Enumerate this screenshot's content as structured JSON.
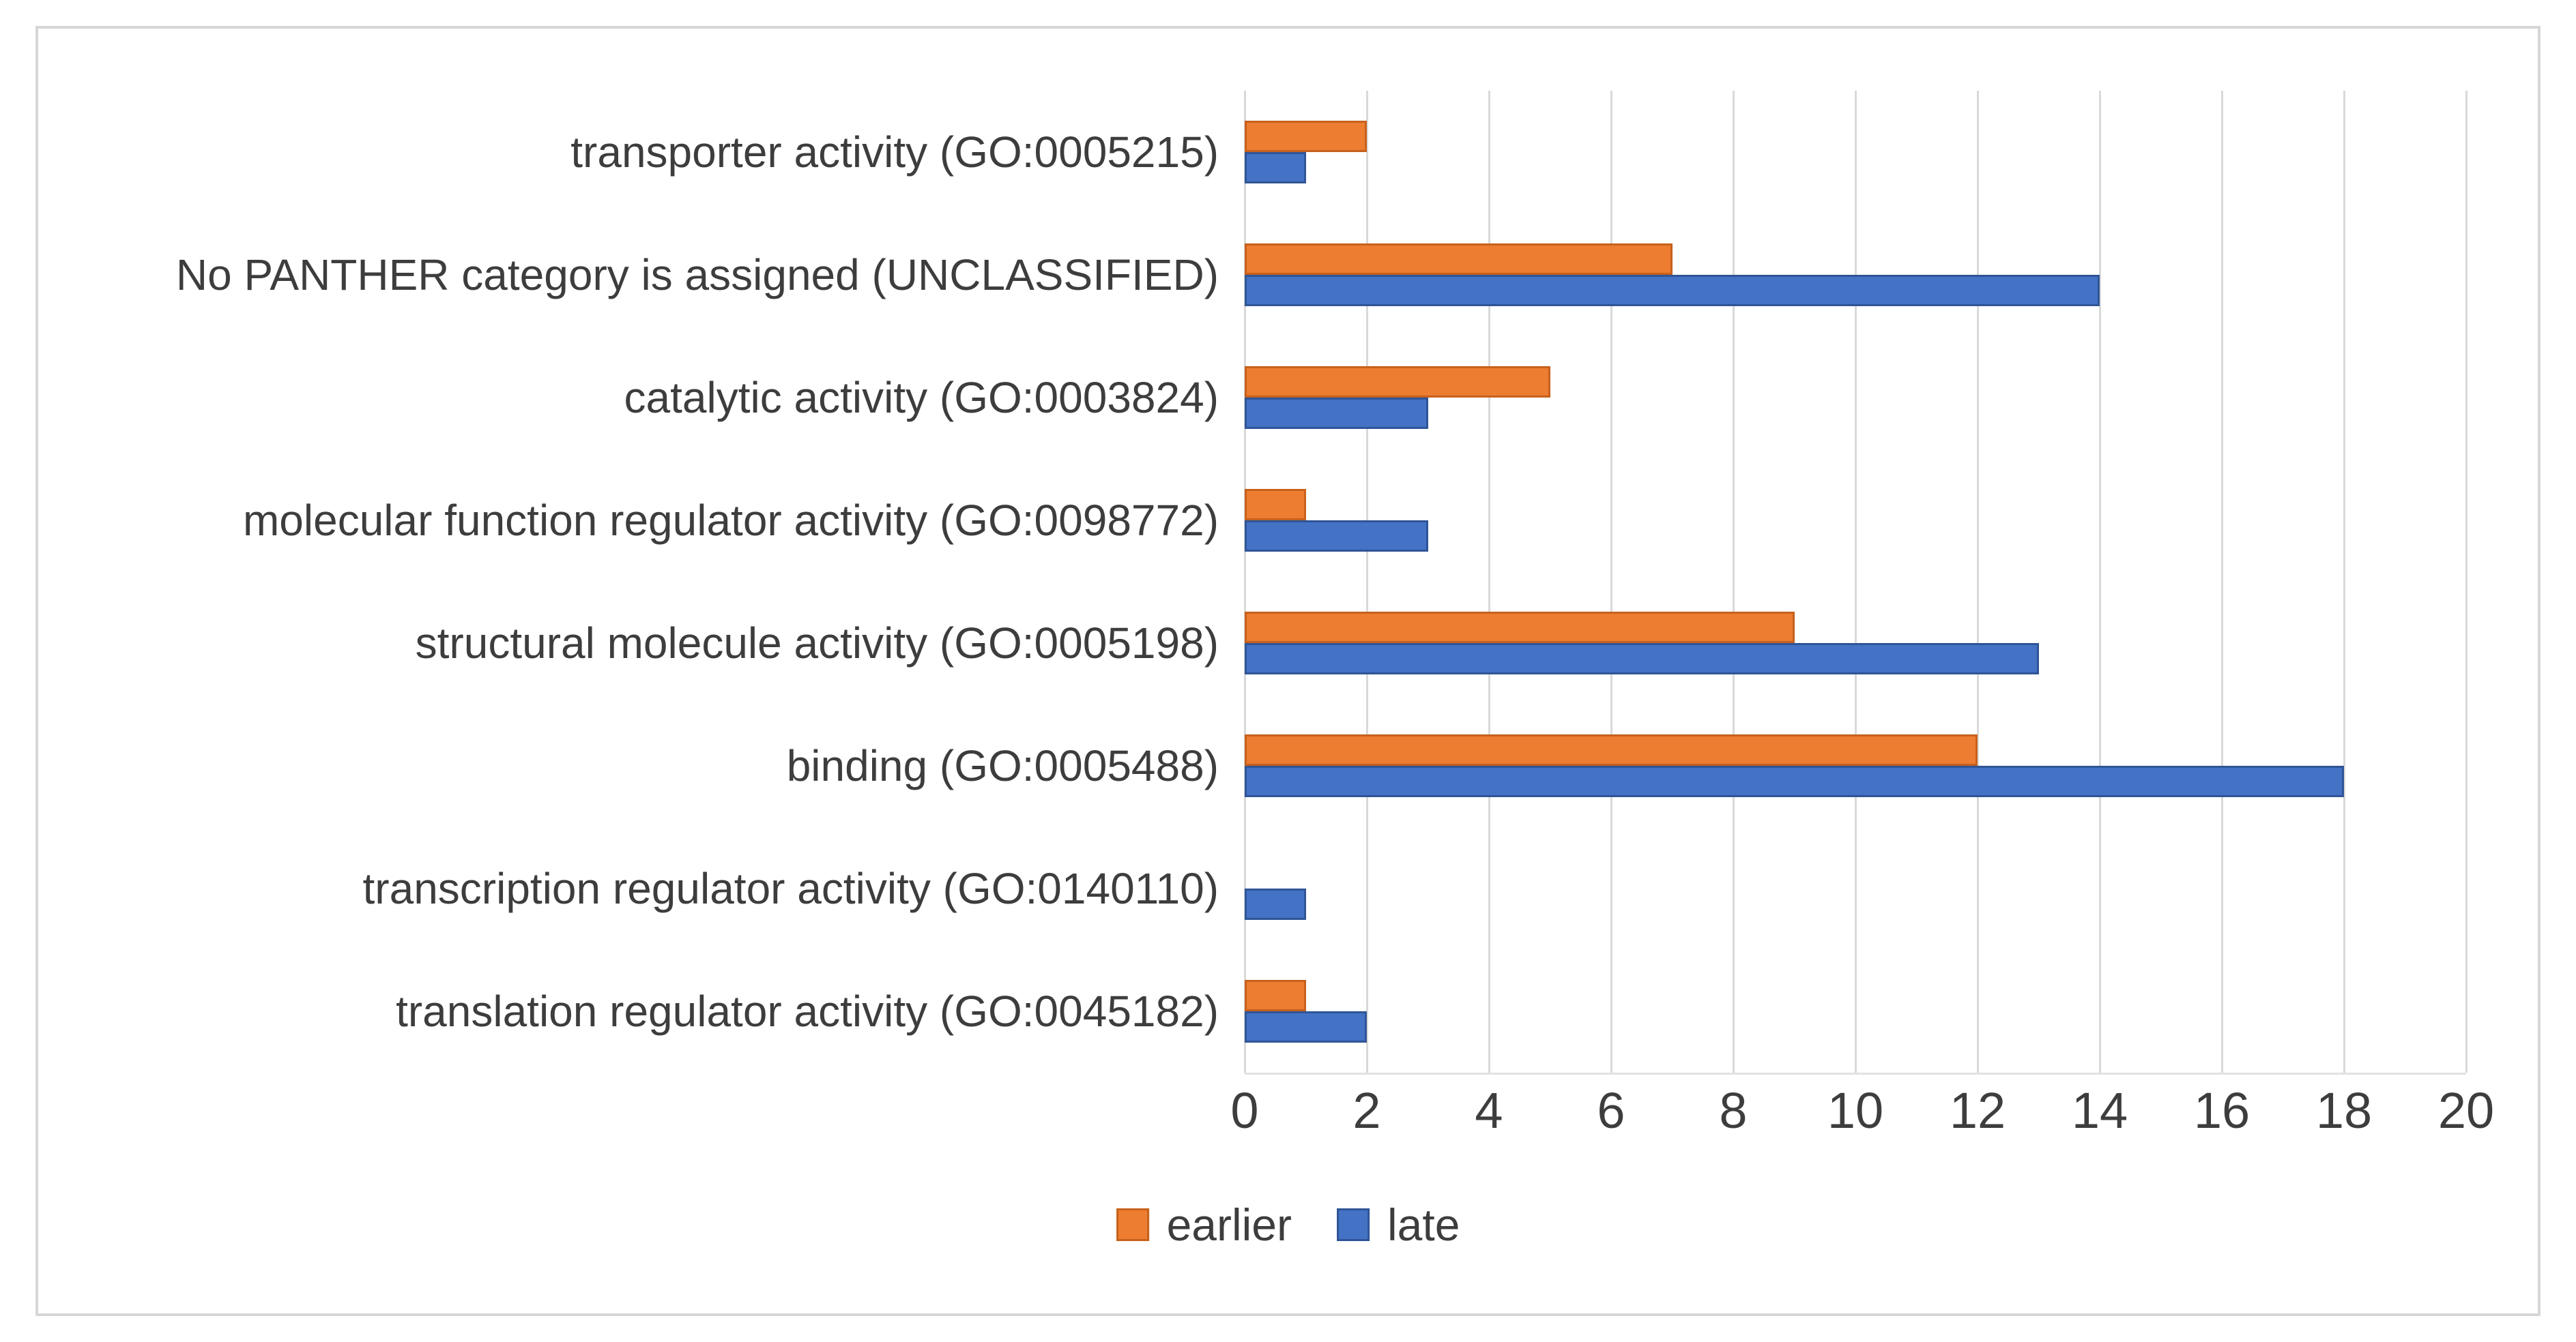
{
  "chart_data": {
    "type": "bar",
    "orientation": "horizontal",
    "title": "",
    "xlabel": "",
    "ylabel": "",
    "categories": [
      "transporter activity (GO:0005215)",
      "No PANTHER category is assigned (UNCLASSIFIED)",
      "catalytic activity (GO:0003824)",
      "molecular function regulator activity (GO:0098772)",
      "structural molecule activity (GO:0005198)",
      "binding (GO:0005488)",
      "transcription regulator activity (GO:0140110)",
      "translation regulator activity (GO:0045182)"
    ],
    "series": [
      {
        "name": "earlier",
        "color": "#ED7D31",
        "values": [
          2,
          7,
          5,
          1,
          9,
          12,
          0,
          1
        ]
      },
      {
        "name": "late",
        "color": "#4472C4",
        "values": [
          1,
          14,
          3,
          3,
          13,
          18,
          1,
          2
        ]
      }
    ],
    "x_ticks": [
      0,
      2,
      4,
      6,
      8,
      10,
      12,
      14,
      16,
      18,
      20
    ],
    "xlim": [
      0,
      20
    ],
    "grid": "vertical",
    "gridline_color": "#D9D9D9",
    "legend_position": "bottom-center",
    "legend": [
      "earlier",
      "late"
    ]
  },
  "colors": {
    "earlier": "#ED7D31",
    "earlier_edge": "#C7611C",
    "late": "#4472C4",
    "late_edge": "#2F5597",
    "frame_border": "#D6D6D6",
    "text": "#3D3D3D",
    "background": "#FFFFFF"
  }
}
